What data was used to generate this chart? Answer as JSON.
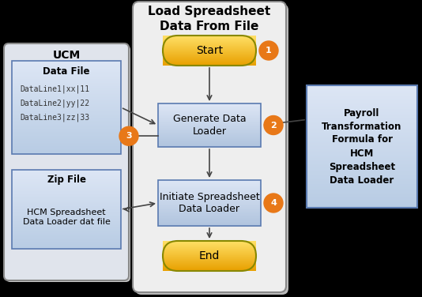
{
  "bg_color": "#000000",
  "main_panel_bg": "#eeeeee",
  "main_panel_border": "#888888",
  "main_title": "Load Spreadsheet\nData From File",
  "main_title_fontsize": 11,
  "ucm_panel_bg": "#e0e4ec",
  "ucm_panel_border": "#888888",
  "ucm_label": "UCM",
  "data_file_box_bg_top": "#dde6f5",
  "data_file_box_bg_bot": "#b8cce4",
  "data_file_box_border": "#5a7ab0",
  "data_file_label": "Data File",
  "data_file_content": "DataLine1|xx|11\nDataLine2|yy|22\nDataLine3|zz|33",
  "zip_file_box_border": "#5a7ab0",
  "zip_file_label": "Zip File",
  "zip_file_content": "HCM Spreadsheet\nData Loader dat file",
  "payroll_box_bg_top": "#dde6f5",
  "payroll_box_bg_bot": "#b8cce4",
  "payroll_box_border": "#5a7ab0",
  "payroll_text": "Payroll\nTransformation\nFormula for\nHCM\nSpreadsheet\nData Loader",
  "start_color_top": "#ffe066",
  "start_color_bot": "#e8a000",
  "start_border": "#888800",
  "process_box_bg_top": "#dde6f5",
  "process_box_bg_bot": "#b0c4de",
  "process_box_border": "#5a7ab0",
  "generate_label": "Generate Data\nLoader",
  "initiate_label": "Initiate Spreadsheet\nData Loader",
  "start_label": "Start",
  "end_label": "End",
  "circle_color": "#e87818",
  "circle_text_color": "#ffffff",
  "arrow_color": "#444444",
  "shadow_color": "#aaaaaa"
}
